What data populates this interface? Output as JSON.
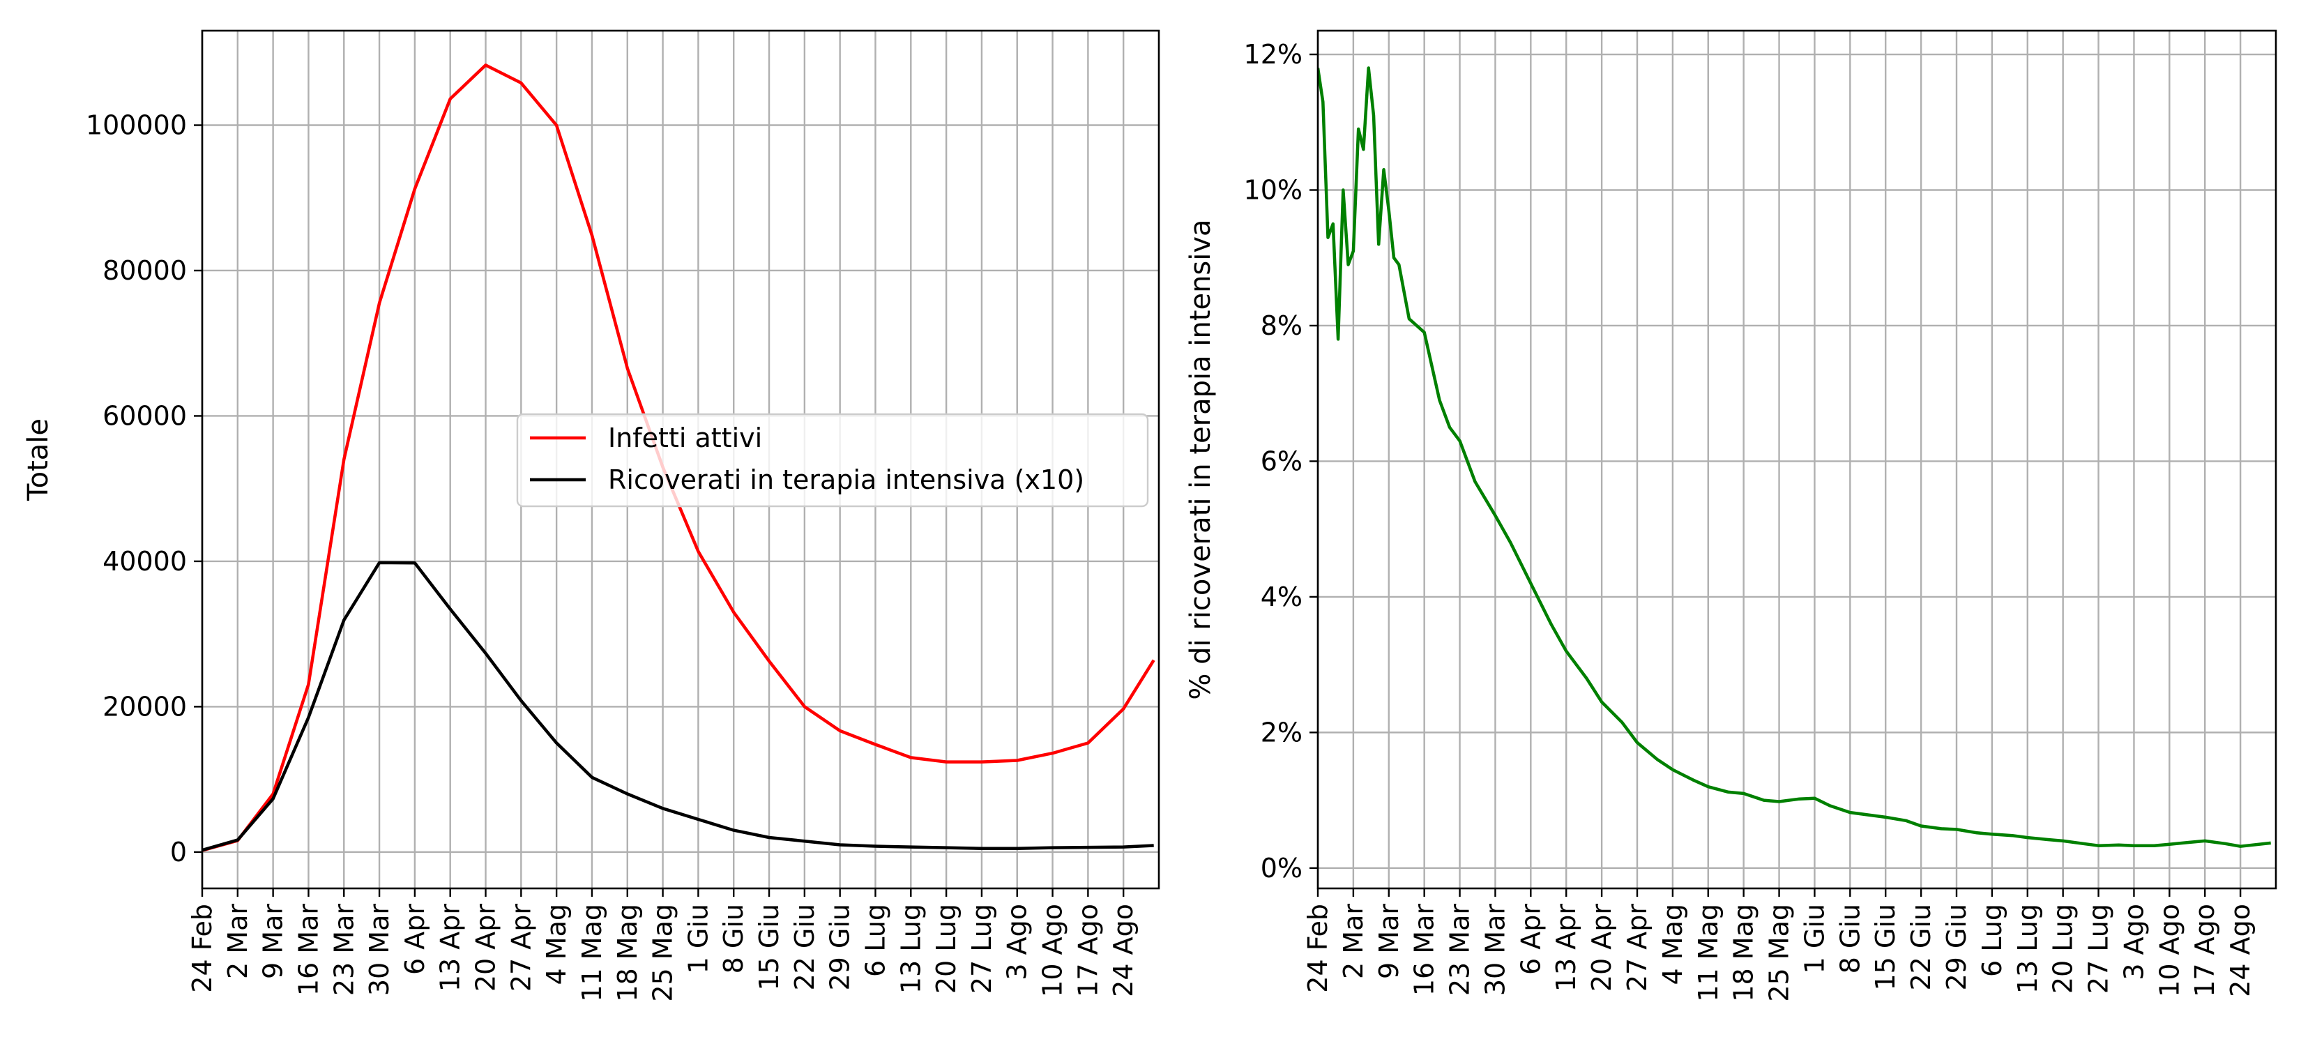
{
  "chart_data": [
    {
      "type": "line",
      "title": "",
      "xlabel": "",
      "ylabel": "Totale",
      "ylim": [
        -5000,
        113000
      ],
      "yticks": [
        "0",
        "20000",
        "40000",
        "60000",
        "80000",
        "100000"
      ],
      "grid": true,
      "legend_position": "center-right",
      "x_tick_labels": [
        "24 Feb",
        "2 Mar",
        "9 Mar",
        "16 Mar",
        "23 Mar",
        "30 Mar",
        "6 Apr",
        "13 Apr",
        "20 Apr",
        "27 Apr",
        "4 Mag",
        "11 Mag",
        "18 Mag",
        "25 Mag",
        "1 Giu",
        "8 Giu",
        "15 Giu",
        "22 Giu",
        "29 Giu",
        "6 Lug",
        "13 Lug",
        "20 Lug",
        "27 Lug",
        "3 Ago",
        "10 Ago",
        "17 Ago",
        "24 Ago"
      ],
      "x": [
        "2020-02-24",
        "2020-03-02",
        "2020-03-09",
        "2020-03-16",
        "2020-03-23",
        "2020-03-30",
        "2020-04-06",
        "2020-04-13",
        "2020-04-20",
        "2020-04-27",
        "2020-05-04",
        "2020-05-11",
        "2020-05-18",
        "2020-05-25",
        "2020-06-01",
        "2020-06-08",
        "2020-06-15",
        "2020-06-22",
        "2020-06-29",
        "2020-07-06",
        "2020-07-13",
        "2020-07-20",
        "2020-07-27",
        "2020-08-03",
        "2020-08-10",
        "2020-08-17",
        "2020-08-24",
        "2020-08-30"
      ],
      "series": [
        {
          "name": "Infetti attivi",
          "color": "#ff0000",
          "values": [
            221,
            1577,
            7985,
            23073,
            54030,
            75528,
            91246,
            103616,
            108257,
            105813,
            99980,
            84842,
            66553,
            52942,
            41367,
            33000,
            26274,
            20000,
            16681,
            14800,
            13000,
            12400,
            12400,
            12600,
            13600,
            15000,
            19700,
            26400
          ]
        },
        {
          "name": "Ricoverati in terapia intensiva (x10)",
          "color": "#000000",
          "values": [
            270,
            1660,
            7330,
            18510,
            31920,
            39810,
            39770,
            33430,
            27340,
            20840,
            15010,
            10270,
            8000,
            6000,
            4500,
            3000,
            2000,
            1500,
            1000,
            800,
            700,
            600,
            500,
            500,
            600,
            650,
            700,
            900
          ]
        }
      ]
    },
    {
      "type": "line",
      "title": "",
      "xlabel": "",
      "ylabel": "% di ricoverati in terapia intensiva",
      "ylim": [
        -0.3,
        12.35
      ],
      "yticks": [
        "0%",
        "2%",
        "4%",
        "6%",
        "8%",
        "10%",
        "12%"
      ],
      "grid": true,
      "x_tick_labels": [
        "24 Feb",
        "2 Mar",
        "9 Mar",
        "16 Mar",
        "23 Mar",
        "30 Mar",
        "6 Apr",
        "13 Apr",
        "20 Apr",
        "27 Apr",
        "4 Mag",
        "11 Mag",
        "18 Mag",
        "25 Mag",
        "1 Giu",
        "8 Giu",
        "15 Giu",
        "22 Giu",
        "29 Giu",
        "6 Lug",
        "13 Lug",
        "20 Lug",
        "27 Lug",
        "3 Ago",
        "10 Ago",
        "17 Ago",
        "24 Ago"
      ],
      "x": [
        "2020-02-24",
        "2020-02-25",
        "2020-02-26",
        "2020-02-27",
        "2020-02-28",
        "2020-02-29",
        "2020-03-01",
        "2020-03-02",
        "2020-03-03",
        "2020-03-04",
        "2020-03-05",
        "2020-03-06",
        "2020-03-07",
        "2020-03-08",
        "2020-03-09",
        "2020-03-10",
        "2020-03-11",
        "2020-03-12",
        "2020-03-13",
        "2020-03-16",
        "2020-03-19",
        "2020-03-21",
        "2020-03-23",
        "2020-03-26",
        "2020-03-30",
        "2020-04-02",
        "2020-04-06",
        "2020-04-10",
        "2020-04-13",
        "2020-04-17",
        "2020-04-20",
        "2020-04-24",
        "2020-04-27",
        "2020-05-01",
        "2020-05-04",
        "2020-05-08",
        "2020-05-11",
        "2020-05-15",
        "2020-05-18",
        "2020-05-22",
        "2020-05-25",
        "2020-05-29",
        "2020-06-01",
        "2020-06-04",
        "2020-06-08",
        "2020-06-12",
        "2020-06-15",
        "2020-06-19",
        "2020-06-22",
        "2020-06-26",
        "2020-06-29",
        "2020-07-03",
        "2020-07-06",
        "2020-07-10",
        "2020-07-13",
        "2020-07-17",
        "2020-07-20",
        "2020-07-24",
        "2020-07-27",
        "2020-07-31",
        "2020-08-03",
        "2020-08-07",
        "2020-08-10",
        "2020-08-14",
        "2020-08-17",
        "2020-08-21",
        "2020-08-24",
        "2020-08-30"
      ],
      "series": [
        {
          "name": "",
          "color": "#008000",
          "values": [
            11.8,
            11.3,
            9.3,
            9.5,
            7.8,
            10.0,
            8.9,
            9.1,
            10.9,
            10.6,
            11.8,
            11.1,
            9.2,
            10.3,
            9.7,
            9.0,
            8.9,
            8.5,
            8.1,
            7.9,
            6.9,
            6.5,
            6.3,
            5.7,
            5.2,
            4.8,
            4.2,
            3.6,
            3.2,
            2.8,
            2.45,
            2.15,
            1.85,
            1.6,
            1.45,
            1.3,
            1.2,
            1.12,
            1.1,
            1.0,
            0.98,
            1.02,
            1.03,
            0.92,
            0.82,
            0.78,
            0.75,
            0.7,
            0.62,
            0.58,
            0.57,
            0.52,
            0.5,
            0.48,
            0.45,
            0.42,
            0.4,
            0.36,
            0.33,
            0.34,
            0.33,
            0.33,
            0.35,
            0.38,
            0.4,
            0.36,
            0.32,
            0.37
          ]
        }
      ]
    }
  ]
}
